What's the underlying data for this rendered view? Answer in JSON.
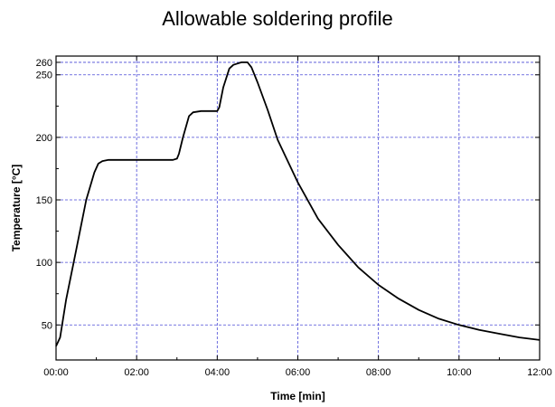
{
  "chart_data": {
    "type": "line",
    "title": "Allowable soldering profile",
    "xlabel": "Time [min]",
    "ylabel": "Temperature [°C]",
    "xlim": [
      0,
      12
    ],
    "ylim": [
      22,
      265
    ],
    "x_ticks": [
      0,
      2,
      4,
      6,
      8,
      10,
      12
    ],
    "x_tick_labels": [
      "00:00",
      "02:00",
      "04:00",
      "06:00",
      "08:00",
      "10:00",
      "12:00"
    ],
    "y_ticks": [
      50,
      100,
      150,
      200,
      250,
      260
    ],
    "y_tick_labels": [
      "50",
      "100",
      "150",
      "200",
      "250",
      "260"
    ],
    "grid": true,
    "grid_style": "dashed",
    "grid_color": "#4a4ad6",
    "line_color": "#000000",
    "series": [
      {
        "x": [
          0.0,
          0.1,
          0.25,
          0.5,
          0.75,
          0.95,
          1.05,
          1.15,
          1.3,
          1.6,
          2.0,
          2.5,
          2.9,
          3.0,
          3.05,
          3.15,
          3.3,
          3.4,
          3.6,
          3.8,
          4.0,
          4.05,
          4.15,
          4.3,
          4.4,
          4.5,
          4.6,
          4.75,
          4.85,
          5.0,
          5.25,
          5.5,
          6.0,
          6.5,
          7.0,
          7.5,
          8.0,
          8.5,
          9.0,
          9.5,
          10.0,
          10.5,
          11.0,
          11.5,
          12.0
        ],
        "y": [
          33,
          40,
          70,
          110,
          150,
          172,
          179,
          181,
          182,
          182,
          182,
          182,
          182,
          183,
          187,
          200,
          217,
          220,
          221,
          221,
          221,
          224,
          240,
          255,
          258,
          259,
          260,
          260,
          256,
          244,
          222,
          198,
          164,
          135,
          114,
          96,
          82,
          71,
          62,
          55,
          50,
          46,
          43,
          40,
          38
        ]
      }
    ]
  }
}
